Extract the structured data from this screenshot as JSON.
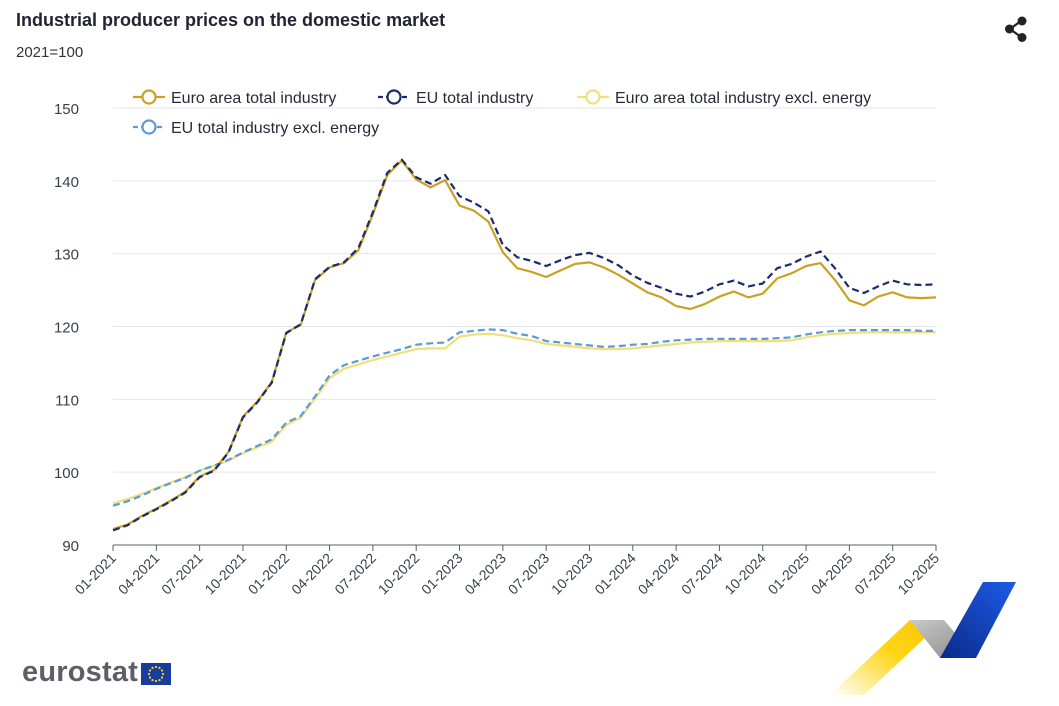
{
  "header": {
    "title": "Industrial producer prices on the domestic market",
    "subtitle": "2021=100"
  },
  "footer": {
    "logo_text": "eurostat"
  },
  "icons": {
    "share": "share-icon",
    "flag": "eu-flag-icon"
  },
  "chart_data": {
    "type": "line",
    "title": "Industrial producer prices on the domestic market",
    "subtitle": "2021=100",
    "xlabel": "",
    "ylabel": "",
    "ylim": [
      90,
      150
    ],
    "yticks": [
      90,
      100,
      110,
      120,
      130,
      140,
      150
    ],
    "grid": true,
    "legend_position": "top",
    "x": [
      "01-2021",
      "02-2021",
      "03-2021",
      "04-2021",
      "05-2021",
      "06-2021",
      "07-2021",
      "08-2021",
      "09-2021",
      "10-2021",
      "11-2021",
      "12-2021",
      "01-2022",
      "02-2022",
      "03-2022",
      "04-2022",
      "05-2022",
      "06-2022",
      "07-2022",
      "08-2022",
      "09-2022",
      "10-2022",
      "11-2022",
      "12-2022",
      "01-2023",
      "02-2023",
      "03-2023",
      "04-2023",
      "05-2023",
      "06-2023",
      "07-2023",
      "08-2023",
      "09-2023",
      "10-2023",
      "11-2023",
      "12-2023",
      "01-2024",
      "02-2024",
      "03-2024",
      "04-2024",
      "05-2024",
      "06-2024",
      "07-2024",
      "08-2024",
      "09-2024",
      "10-2024",
      "11-2024",
      "12-2024",
      "01-2025",
      "02-2025",
      "03-2025",
      "04-2025",
      "05-2025",
      "06-2025",
      "07-2025",
      "08-2025",
      "09-2025",
      "10-2025"
    ],
    "xtick_labels": [
      "01-2021",
      "04-2021",
      "07-2021",
      "10-2021",
      "01-2022",
      "04-2022",
      "07-2022",
      "10-2022",
      "01-2023",
      "04-2023",
      "07-2023",
      "10-2023",
      "01-2024",
      "04-2024",
      "07-2024",
      "10-2024",
      "01-2025",
      "04-2025",
      "07-2025",
      "10-2025"
    ],
    "series": [
      {
        "name": "Euro area total industry",
        "color": "#c9a224",
        "dash": false,
        "values": [
          92.2,
          92.8,
          94.0,
          95.0,
          96.1,
          97.3,
          99.4,
          100.3,
          102.8,
          107.6,
          109.7,
          112.4,
          119.2,
          120.2,
          126.4,
          128.1,
          128.7,
          130.5,
          135.4,
          140.8,
          142.8,
          140.2,
          139.1,
          140.1,
          136.6,
          135.9,
          134.4,
          130.2,
          128.0,
          127.5,
          126.8,
          127.7,
          128.6,
          128.8,
          128.1,
          127.1,
          125.9,
          124.7,
          124.0,
          122.8,
          122.4,
          123.1,
          124.1,
          124.8,
          124.0,
          124.5,
          126.6,
          127.3,
          128.3,
          128.7,
          126.4,
          123.6,
          122.9,
          124.1,
          124.7,
          124.0,
          123.9,
          124.0
        ]
      },
      {
        "name": "EU total industry",
        "color": "#1c2a6e",
        "dash": true,
        "values": [
          92.0,
          92.7,
          93.9,
          94.9,
          96.0,
          97.2,
          99.3,
          100.2,
          102.7,
          107.5,
          109.6,
          112.3,
          119.1,
          120.3,
          126.5,
          128.2,
          128.8,
          130.8,
          135.7,
          141.1,
          142.9,
          140.5,
          139.6,
          140.8,
          137.9,
          137.0,
          135.8,
          131.2,
          129.5,
          129.0,
          128.3,
          129.1,
          129.8,
          130.1,
          129.4,
          128.4,
          127.0,
          126.0,
          125.3,
          124.5,
          124.1,
          124.8,
          125.8,
          126.3,
          125.5,
          125.9,
          128.0,
          128.6,
          129.6,
          130.3,
          128.0,
          125.3,
          124.6,
          125.5,
          126.3,
          125.8,
          125.7,
          125.8
        ]
      },
      {
        "name": "Euro area total industry excl. energy",
        "color": "#f2df7a",
        "dash": false,
        "values": [
          95.7,
          96.3,
          97.0,
          97.8,
          98.6,
          99.3,
          100.2,
          100.9,
          101.6,
          102.6,
          103.4,
          104.2,
          106.5,
          107.5,
          110.1,
          112.9,
          114.2,
          114.8,
          115.4,
          115.9,
          116.4,
          116.9,
          117.0,
          117.0,
          118.6,
          118.9,
          119.0,
          118.8,
          118.4,
          118.1,
          117.6,
          117.4,
          117.2,
          117.0,
          116.9,
          116.9,
          117.0,
          117.2,
          117.4,
          117.6,
          117.8,
          117.9,
          118.0,
          118.0,
          118.0,
          118.0,
          118.0,
          118.1,
          118.5,
          118.8,
          119.0,
          119.1,
          119.2,
          119.2,
          119.2,
          119.2,
          119.2,
          119.2
        ]
      },
      {
        "name": "EU total industry excl. energy",
        "color": "#5b9bd5",
        "dash": true,
        "values": [
          95.4,
          96.0,
          96.8,
          97.7,
          98.5,
          99.2,
          100.2,
          100.9,
          101.7,
          102.7,
          103.6,
          104.5,
          106.8,
          107.7,
          110.4,
          113.3,
          114.7,
          115.3,
          115.9,
          116.4,
          116.9,
          117.5,
          117.7,
          117.8,
          119.2,
          119.4,
          119.6,
          119.5,
          119.0,
          118.7,
          118.0,
          117.8,
          117.6,
          117.4,
          117.2,
          117.3,
          117.5,
          117.6,
          117.9,
          118.1,
          118.2,
          118.3,
          118.3,
          118.3,
          118.3,
          118.3,
          118.4,
          118.5,
          118.9,
          119.2,
          119.4,
          119.5,
          119.5,
          119.5,
          119.5,
          119.5,
          119.4,
          119.4
        ]
      }
    ]
  }
}
